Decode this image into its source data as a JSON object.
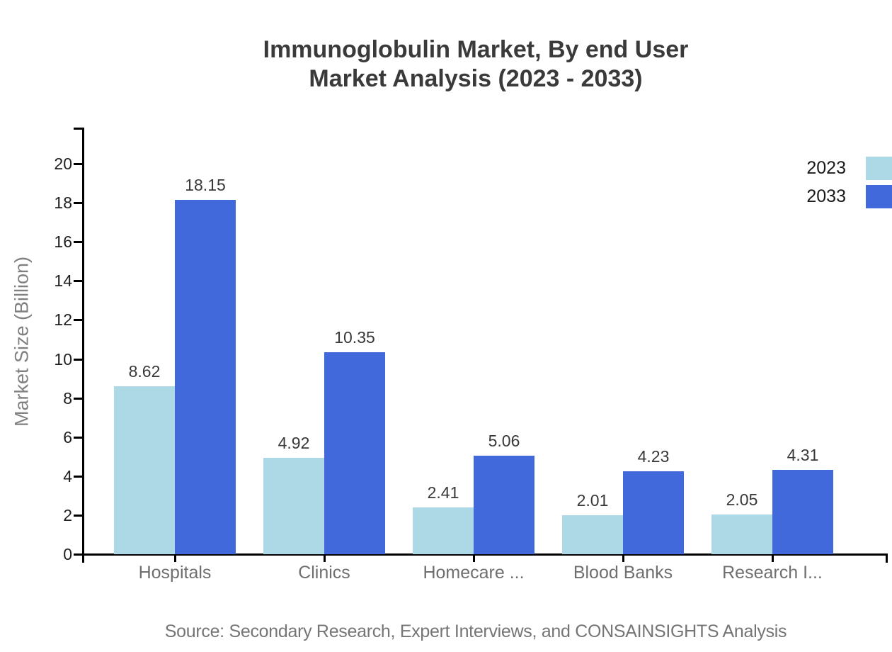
{
  "title": {
    "line1": "Immunoglobulin Market, By end User",
    "line2": "Market Analysis (2023 - 2033)"
  },
  "source": "Source: Secondary Research, Expert Interviews, and CONSAINSIGHTS Analysis",
  "chart_data": {
    "type": "bar",
    "title": "Immunoglobulin Market, By end User Market Analysis (2023 - 2033)",
    "categories": [
      "Hospitals",
      "Clinics",
      "Homecare ...",
      "Blood Banks",
      "Research I..."
    ],
    "series": [
      {
        "name": "2023",
        "color": "#ADD8E6",
        "values": [
          8.62,
          4.92,
          2.41,
          2.01,
          2.05
        ]
      },
      {
        "name": "2033",
        "color": "#4169DB",
        "values": [
          18.15,
          10.35,
          5.06,
          4.23,
          4.31
        ]
      }
    ],
    "xlabel": "",
    "ylabel": "Market Size (Billion)",
    "ylim": [
      0,
      20
    ],
    "yticks": [
      0,
      2,
      4,
      6,
      8,
      10,
      12,
      14,
      16,
      18,
      20
    ],
    "grid": false,
    "legend_position": "top-right",
    "value_labels": true
  },
  "colors": {
    "background": "#ffffff",
    "axis": "#000000",
    "series_2023": "#ADD8E6",
    "series_2033": "#4169DB",
    "title_text": "#3a3a3a",
    "tick_text": "#1f1f1f",
    "category_text": "#6f6f6f",
    "value_text": "#383838",
    "source_text": "#757575",
    "ylabel_text": "#808080"
  }
}
